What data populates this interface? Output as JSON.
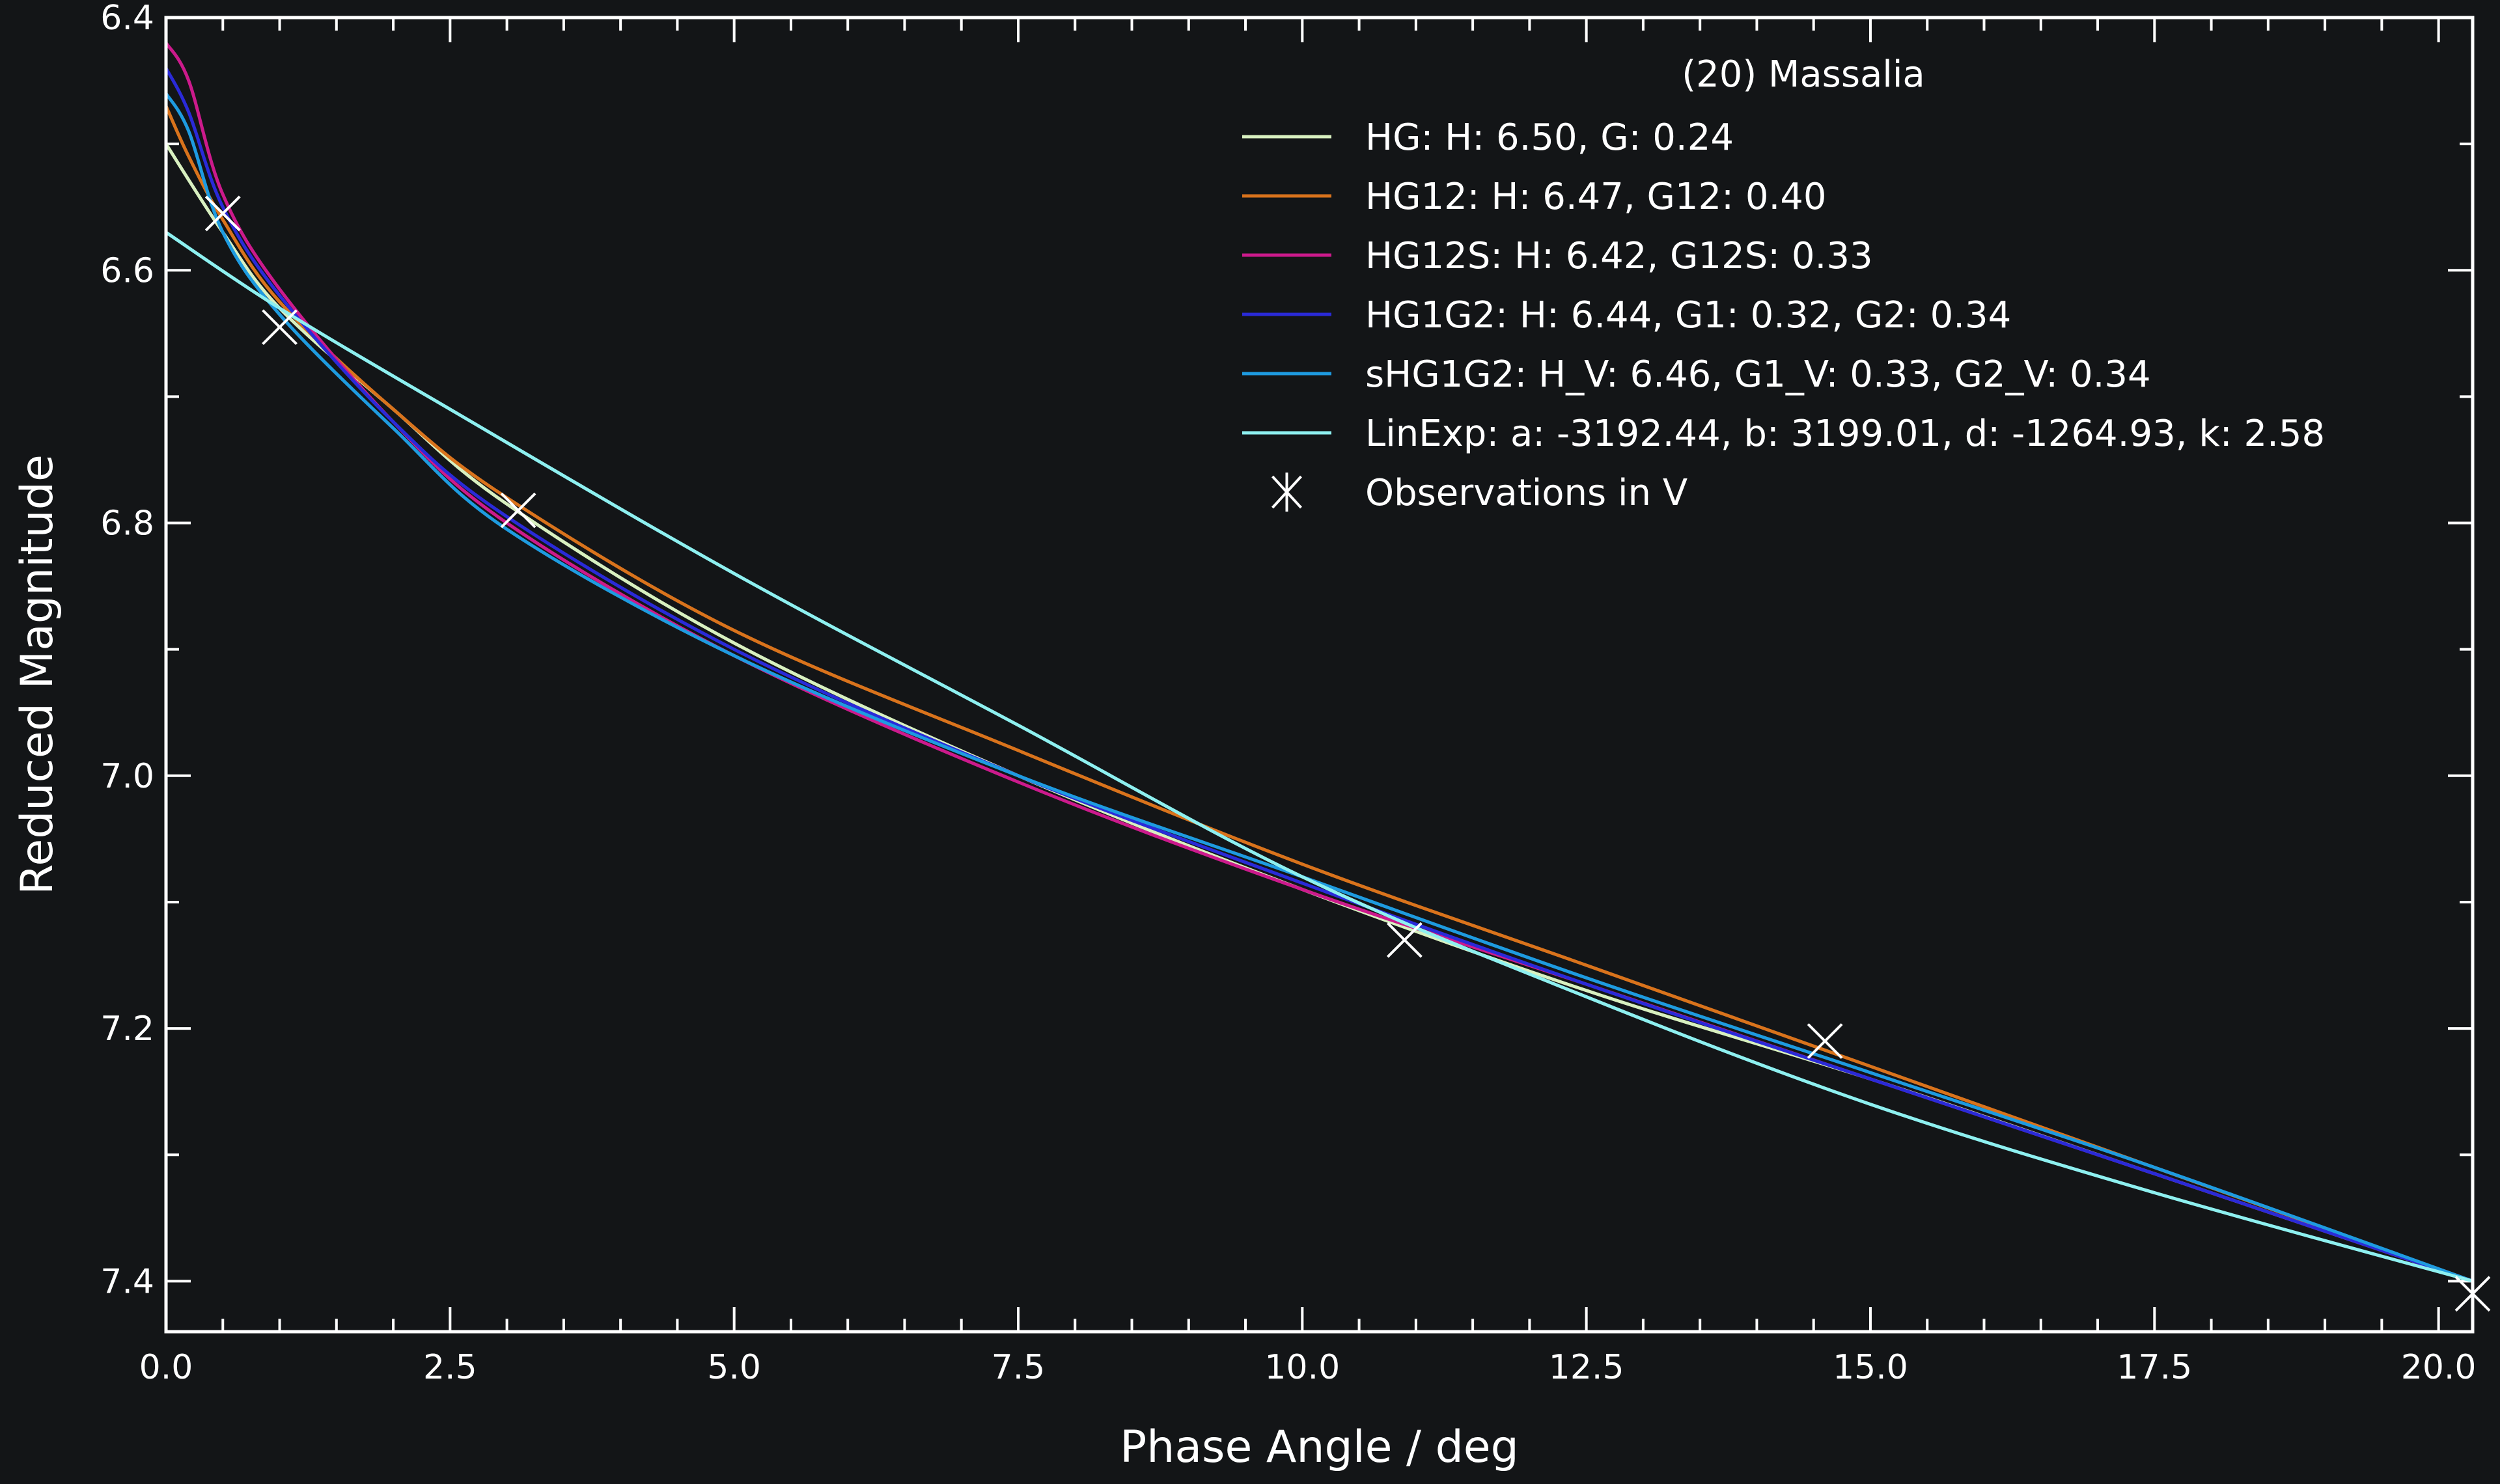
{
  "chart_data": {
    "type": "line",
    "title": "",
    "xlabel": "Phase Angle / deg",
    "ylabel": "Reduced Magnitude",
    "xlim": [
      0.0,
      20.3
    ],
    "ylim": [
      6.4,
      7.44
    ],
    "y_inverted": true,
    "xticks": [
      "0.0",
      "2.5",
      "5.0",
      "7.5",
      "10.0",
      "12.5",
      "15.0",
      "17.5",
      "20.0"
    ],
    "yticks": [
      "6.4",
      "6.6",
      "6.8",
      "7.0",
      "7.2",
      "7.4"
    ],
    "legend": {
      "placement": "top-right",
      "title": "(20) Massalia"
    },
    "series": [
      {
        "name": "HG: H: 6.50, G: 0.24",
        "color": "#d8f0c0",
        "x": [
          0,
          0.5,
          1,
          2,
          3,
          5,
          7.5,
          10,
          12.5,
          15,
          17.5,
          20.3
        ],
        "y": [
          6.5,
          6.57,
          6.63,
          6.71,
          6.785,
          6.895,
          7.0,
          7.09,
          7.17,
          7.24,
          7.315,
          7.4
        ]
      },
      {
        "name": "HG12: H: 6.47, G12: 0.40",
        "color": "#d9731c",
        "x": [
          0,
          0.2,
          0.5,
          1,
          2,
          3,
          5,
          7.5,
          10,
          12.5,
          15,
          17.5,
          20.3
        ],
        "y": [
          6.47,
          6.51,
          6.56,
          6.625,
          6.71,
          6.78,
          6.885,
          6.98,
          7.07,
          7.15,
          7.23,
          7.31,
          7.4
        ]
      },
      {
        "name": "HG12S: H: 6.42, G12S: 0.33",
        "color": "#cc1a8c",
        "x": [
          0,
          0.2,
          0.5,
          1,
          2,
          3,
          5,
          7.5,
          10,
          12.5,
          15,
          17.5,
          20.3
        ],
        "y": [
          6.42,
          6.45,
          6.54,
          6.615,
          6.72,
          6.8,
          6.905,
          7.005,
          7.09,
          7.165,
          7.24,
          7.315,
          7.4
        ]
      },
      {
        "name": "HG1G2: H: 6.44, G1: 0.32, G2: 0.34",
        "color": "#2a2ad8",
        "x": [
          0,
          0.2,
          0.5,
          1,
          2,
          3,
          5,
          7.5,
          10,
          12.5,
          15,
          17.5,
          20.3
        ],
        "y": [
          6.44,
          6.475,
          6.55,
          6.62,
          6.72,
          6.795,
          6.9,
          7.0,
          7.085,
          7.165,
          7.24,
          7.315,
          7.4
        ]
      },
      {
        "name": "sHG1G2: H_V: 6.46, G1_V: 0.33, G2_V: 0.34",
        "color": "#1e9be0",
        "x": [
          0,
          0.2,
          0.5,
          1,
          2,
          3,
          5,
          7.5,
          10,
          12.5,
          15,
          17.5,
          20.3
        ],
        "y": [
          6.46,
          6.49,
          6.57,
          6.635,
          6.725,
          6.805,
          6.905,
          7.0,
          7.08,
          7.16,
          7.235,
          7.31,
          7.4
        ]
      },
      {
        "name": "LinExp: a: -3192.44, b: 3199.01, d: -1264.93, k: 2.58",
        "color": "#8ef0f0",
        "x": [
          0,
          1,
          2.5,
          5,
          7.5,
          10,
          12.5,
          15,
          17.5,
          20.3
        ],
        "y": [
          6.57,
          6.63,
          6.71,
          6.84,
          6.96,
          7.08,
          7.175,
          7.26,
          7.33,
          7.4
        ]
      }
    ],
    "observations": {
      "name": "Observations in V",
      "color": "#ffffff",
      "x": [
        0.5,
        1.0,
        3.1,
        10.9,
        14.6,
        20.3
      ],
      "y": [
        6.555,
        6.645,
        6.79,
        7.13,
        7.21,
        7.41
      ]
    }
  }
}
